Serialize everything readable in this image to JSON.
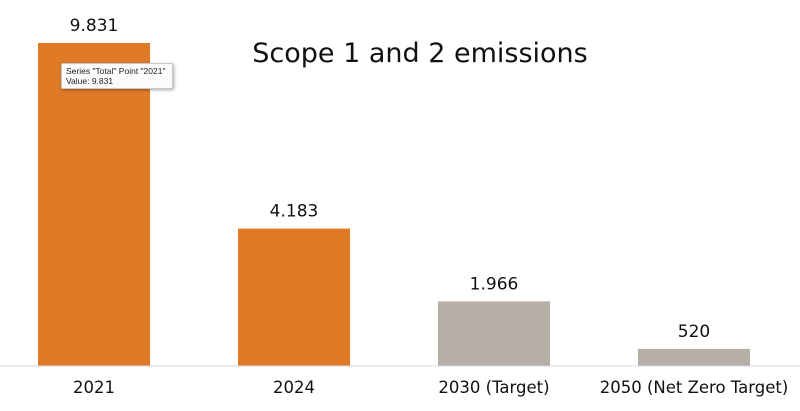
{
  "chart_data": {
    "type": "bar",
    "title": "Scope 1 and 2 emissions",
    "xlabel": "",
    "ylabel": "",
    "ylim": [
      0,
      9831
    ],
    "grid": false,
    "legend": "none",
    "categories": [
      "2021",
      "2024",
      "2030 (Target)",
      "2050 (Net Zero Target)"
    ],
    "series": [
      {
        "name": "Total",
        "values": [
          9831,
          4183,
          1966,
          520
        ],
        "labels": [
          "9.831",
          "4.183",
          "1.966",
          "520"
        ],
        "colors": [
          "#E07A27",
          "#E07A27",
          "#B5AFA8",
          "#B5AFA8"
        ]
      }
    ]
  },
  "tooltip": {
    "line1": "Series \"Total\" Point \"2021\"",
    "line2": "Value:  9.831"
  },
  "colors": {
    "actual": "#E07A27",
    "target": "#B5AFA8",
    "axis": "#d9d9d9",
    "text": "#111111"
  }
}
